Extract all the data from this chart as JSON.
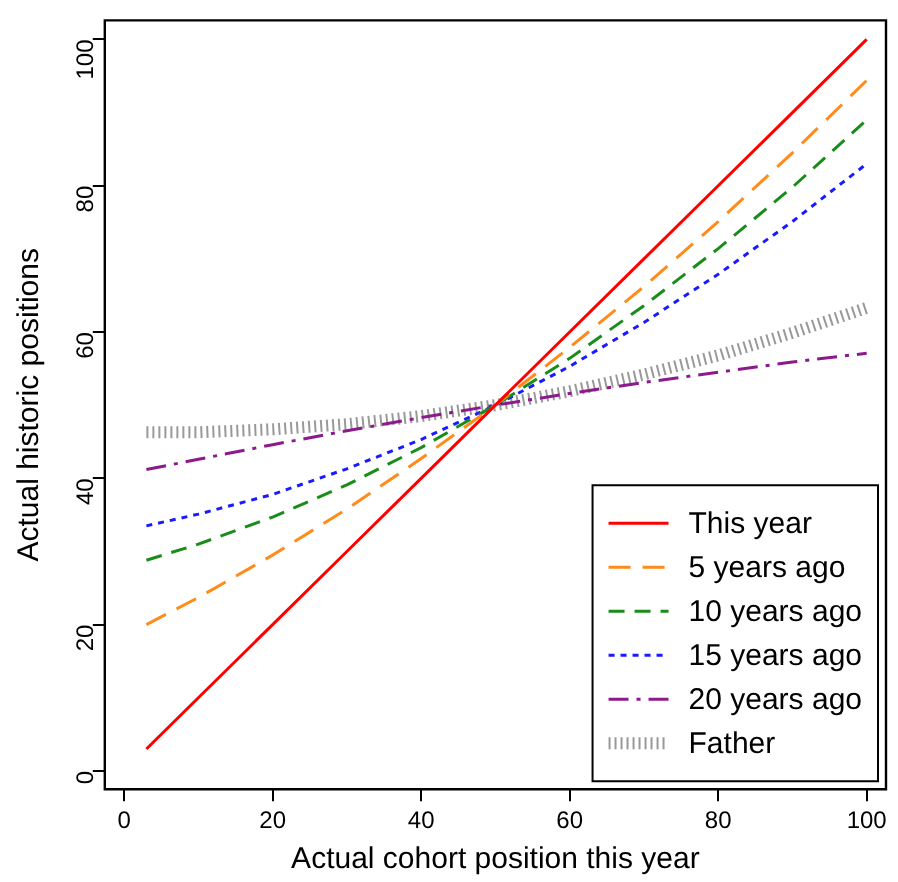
{
  "chart_data": {
    "type": "line",
    "xlabel": "Actual cohort position this year",
    "ylabel": "Actual historic positions",
    "x": [
      3,
      10,
      20,
      30,
      40,
      50,
      60,
      70,
      80,
      90,
      100
    ],
    "series": [
      {
        "name": "This year",
        "color": "#ff0000",
        "line_style": "solid",
        "values": [
          3,
          10,
          20,
          30,
          40,
          50,
          60,
          70,
          80,
          90,
          100
        ]
      },
      {
        "name": "5 years ago",
        "color": "#ff8c1a",
        "line_style": "dashed",
        "values": [
          20.0,
          23.7,
          29.5,
          35.8,
          42.7,
          50,
          57.9,
          66.2,
          75.1,
          84.5,
          94.4
        ]
      },
      {
        "name": "10 years ago",
        "color": "#1a8c1a",
        "line_style": "dashed",
        "values": [
          28.8,
          31.0,
          34.7,
          39.1,
          44.2,
          50,
          56.4,
          63.6,
          71.4,
          79.8,
          89.0
        ]
      },
      {
        "name": "15 years ago",
        "color": "#1a1aff",
        "line_style": "dotted",
        "values": [
          33.5,
          35.1,
          37.8,
          41.3,
          45.3,
          50,
          55.3,
          61.3,
          67.9,
          75.1,
          83.0
        ]
      },
      {
        "name": "20 years ago",
        "color": "#8c1a8c",
        "line_style": "dashed",
        "values": [
          41.2,
          42.6,
          44.6,
          46.5,
          48.3,
          50,
          51.6,
          53.1,
          54.5,
          55.9,
          57.1
        ]
      },
      {
        "name": "Father",
        "color": "#999999",
        "line_style": "dotted",
        "values": [
          46.3,
          46.3,
          46.7,
          47.4,
          48.5,
          50,
          51.9,
          54.2,
          56.8,
          59.9,
          63.3
        ]
      }
    ],
    "xlim": [
      -2.6,
      102.6
    ],
    "ylim": [
      -2.5,
      102.6
    ],
    "xticks": [
      0,
      20,
      40,
      60,
      80,
      100
    ],
    "yticks": [
      0,
      20,
      40,
      60,
      80,
      100
    ],
    "grid": false,
    "legend": "bottom right",
    "marker": "none"
  }
}
